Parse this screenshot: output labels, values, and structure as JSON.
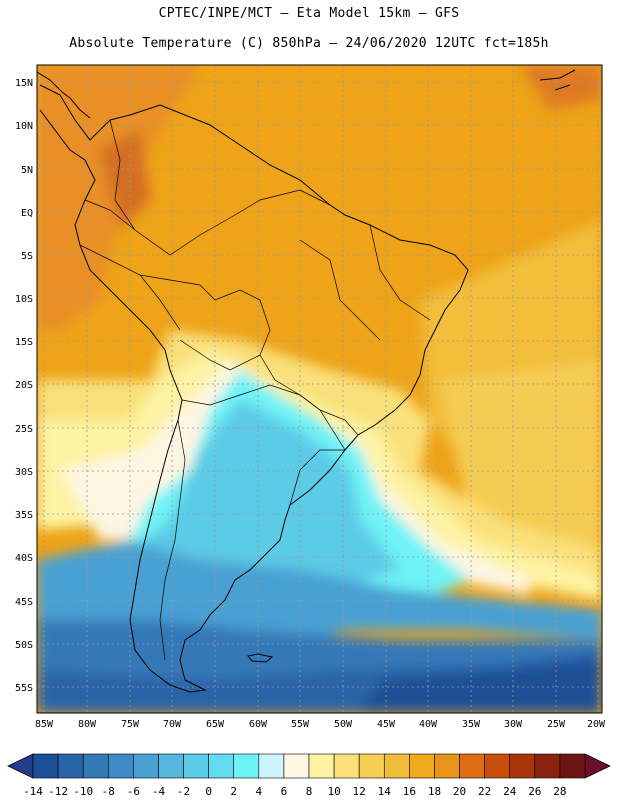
{
  "title_line1": "CPTEC/INPE/MCT –  Eta Model 15km – GFS",
  "title_line2": "Absolute Temperature (C) 850hPa – 24/06/2020 12UTC fct=185h",
  "lat_labels": [
    "15N",
    "10N",
    "5N",
    "EQ",
    "5S",
    "10S",
    "15S",
    "20S",
    "25S",
    "30S",
    "35S",
    "40S",
    "45S",
    "50S",
    "55S"
  ],
  "lon_labels": [
    "85W",
    "80W",
    "75W",
    "70W",
    "65W",
    "60W",
    "55W",
    "50W",
    "45W",
    "40W",
    "35W",
    "30W",
    "25W",
    "20W"
  ],
  "colorbar": {
    "labels": [
      "-14",
      "-12",
      "-10",
      "-8",
      "-6",
      "-4",
      "-2",
      "0",
      "2",
      "4",
      "6",
      "8",
      "10",
      "12",
      "14",
      "16",
      "18",
      "20",
      "22",
      "24",
      "26",
      "28"
    ],
    "colors": [
      "#1d4f96",
      "#2a64a8",
      "#3478b8",
      "#3f8bc6",
      "#4aa0d2",
      "#55b7de",
      "#5ccbe6",
      "#62dcee",
      "#6ff2f6",
      "#cdf4fa",
      "#fdf6e2",
      "#fdf3a2",
      "#fbe07a",
      "#f6cd55",
      "#f0bd3a",
      "#eeaa1c",
      "#e8931a",
      "#dd6c12",
      "#c84e0c",
      "#a8360a",
      "#8a2410",
      "#6e1414"
    ]
  },
  "colors": {
    "warm": "#eea318",
    "tropic": "#e8962a",
    "cold": "#3a7fbf",
    "deep": "#1d4f96"
  }
}
